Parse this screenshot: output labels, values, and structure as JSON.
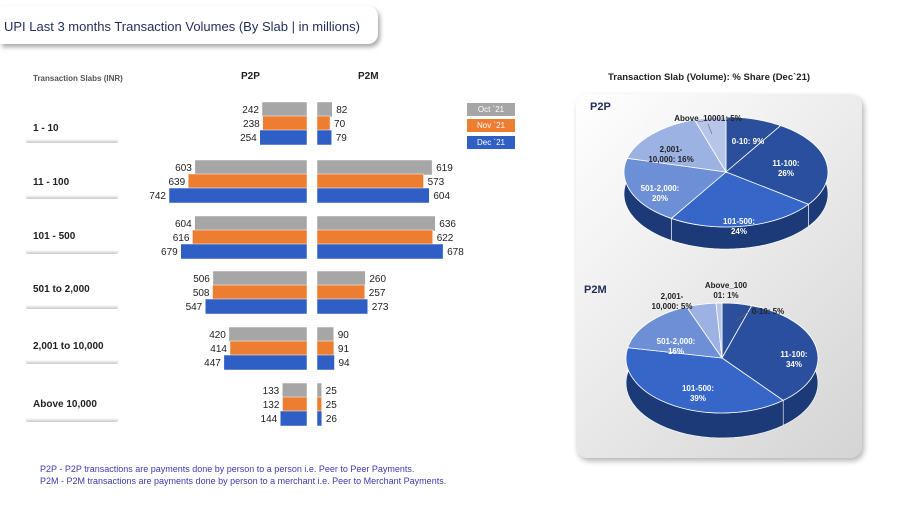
{
  "title": "UPI Last 3 months Transaction Volumes (By Slab | in millions)",
  "bar_panel": {
    "slab_header": "Transaction Slabs (INR)",
    "p2p_label": "P2P",
    "p2m_label": "P2M"
  },
  "legend": {
    "items": [
      {
        "label": "Oct `21",
        "color": "#a6a6a6",
        "text_color": "#ffffff"
      },
      {
        "label": "Nov `21",
        "color": "#ed7d31",
        "text_color": "#ffffff"
      },
      {
        "label": "Dec `21",
        "color": "#2f5fc4",
        "text_color": "#ffffff"
      }
    ]
  },
  "notes": [
    "P2P - P2P transactions are payments done by person to a person i.e. Peer to Peer Payments.",
    "P2M - P2M transactions are payments done by person to a merchant i.e. Peer to Merchant Payments."
  ],
  "pie_panel": {
    "title": "Transaction Slab (Volume):  % Share (Dec`21)",
    "p2p_name": "P2P",
    "p2m_name": "P2M"
  },
  "chart_data": [
    {
      "type": "bar",
      "subtype": "horizontal-butterfly",
      "categories": [
        "1 - 10",
        "11 - 100",
        "101 - 500",
        "501 to 2,000",
        "2,001 to 10,000",
        "Above  10,000"
      ],
      "left_group": "P2P",
      "right_group": "P2M",
      "series": [
        {
          "name": "Oct `21",
          "color": "#a6a6a6",
          "p2p": [
            242,
            603,
            604,
            506,
            420,
            133
          ],
          "p2m": [
            82,
            619,
            636,
            260,
            90,
            25
          ]
        },
        {
          "name": "Nov `21",
          "color": "#ed7d31",
          "p2p": [
            238,
            639,
            616,
            508,
            414,
            132
          ],
          "p2m": [
            70,
            573,
            622,
            257,
            91,
            25
          ]
        },
        {
          "name": "Dec `21",
          "color": "#2f5fc4",
          "p2p": [
            254,
            742,
            679,
            547,
            447,
            144
          ],
          "p2m": [
            79,
            604,
            678,
            273,
            94,
            26
          ]
        }
      ]
    },
    {
      "type": "pie",
      "title": "P2P",
      "slices": [
        {
          "label": "0-10",
          "value": 9,
          "display": "0-10: 9%",
          "color": "#2b4f9a"
        },
        {
          "label": "11-100",
          "value": 26,
          "display": "11-100:\n26%",
          "color": "#2a4f9e"
        },
        {
          "label": "101-500",
          "value": 24,
          "display": "101-500:\n24%",
          "color": "#3566c8"
        },
        {
          "label": "501-2,000",
          "value": 20,
          "display": "501-2,000:\n20%",
          "color": "#6d8fd6"
        },
        {
          "label": "2,001-10,000",
          "value": 16,
          "display": "2,001-\n10,000: 16%",
          "color": "#9cb2e2"
        },
        {
          "label": "Above_10001",
          "value": 5,
          "display": "Above_10001: 5%",
          "color": "#b7c6e8"
        }
      ]
    },
    {
      "type": "pie",
      "title": "P2M",
      "slices": [
        {
          "label": "0-10",
          "value": 5,
          "display": "0-10: 5%",
          "color": "#2b4f9a"
        },
        {
          "label": "11-100",
          "value": 34,
          "display": "11-100:\n34%",
          "color": "#2a4f9e"
        },
        {
          "label": "101-500",
          "value": 39,
          "display": "101-500:\n39%",
          "color": "#3566c8"
        },
        {
          "label": "501-2,000",
          "value": 16,
          "display": "501-2,000:\n16%",
          "color": "#6d8fd6"
        },
        {
          "label": "2,001-10,000",
          "value": 5,
          "display": "2,001-\n10,000: 5%",
          "color": "#9cb2e2"
        },
        {
          "label": "Above_10001",
          "value": 1,
          "display": "Above_100\n01: 1%",
          "color": "#b7c6e8"
        }
      ]
    }
  ]
}
